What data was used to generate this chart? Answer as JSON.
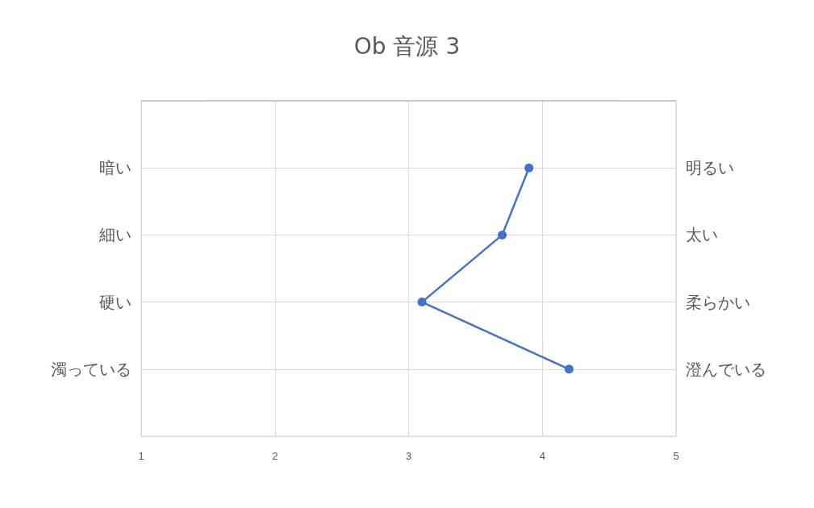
{
  "chart_data": {
    "type": "line",
    "title": "Ob 音源 3",
    "orientation": "horizontal",
    "categories": [
      "暗い",
      "細い",
      "硬い",
      "濁っている"
    ],
    "y2_categories": [
      "明るい",
      "太い",
      "柔らかい",
      "澄んでいる"
    ],
    "series": [
      {
        "color": "#4472c4",
        "values": [
          3.9,
          3.7,
          3.1,
          4.2
        ]
      }
    ],
    "xlim": [
      1,
      5
    ],
    "xticks": [
      1,
      2,
      3,
      4,
      5
    ],
    "grid": true,
    "marker": "circle",
    "line_style": "solid"
  }
}
